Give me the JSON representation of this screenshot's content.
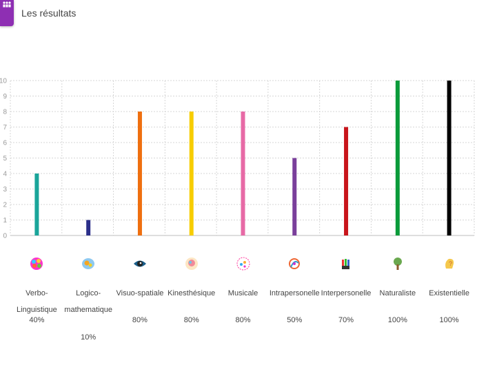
{
  "header": {
    "title": "Les résultats",
    "icon": "people-group-icon"
  },
  "chart_data": {
    "type": "bar",
    "title": "",
    "xlabel": "",
    "ylabel": "",
    "ylim": [
      0,
      10
    ],
    "yticks": [
      0,
      1,
      2,
      3,
      4,
      5,
      6,
      7,
      8,
      9,
      10
    ],
    "grid": true,
    "categories": [
      "Verbo-Linguistique",
      "Logico-mathematique",
      "Visuo-spatiale",
      "Kinesthésique",
      "Musicale",
      "Intrapersonelle",
      "Interpersonelle",
      "Naturaliste",
      "Existentielle"
    ],
    "category_lines": [
      [
        "Verbo-Linguistique"
      ],
      [
        "Logico-",
        "mathematique"
      ],
      [
        "Visuo-spatiale"
      ],
      [
        "Kinesthésique"
      ],
      [
        "Musicale"
      ],
      [
        "Intrapersonelle"
      ],
      [
        "Interpersonelle"
      ],
      [
        "Naturaliste"
      ],
      [
        "Existentielle"
      ]
    ],
    "values": [
      4,
      1,
      8,
      8,
      8,
      5,
      7,
      10,
      10
    ],
    "percentages": [
      "40%",
      "10%",
      "80%",
      "80%",
      "80%",
      "50%",
      "70%",
      "100%",
      "100%"
    ],
    "colors": [
      "#1aa59a",
      "#2b2f8a",
      "#ef6f0f",
      "#f7cd00",
      "#e76aa6",
      "#7a3f9b",
      "#c8151b",
      "#0a9b3a",
      "#000000"
    ],
    "icons": [
      "brain-colorful-icon",
      "brain-gears-icon",
      "eye-icon",
      "brain-body-icon",
      "music-notes-icon",
      "self-figure-icon",
      "hands-icon",
      "tree-icon",
      "question-head-icon"
    ]
  }
}
